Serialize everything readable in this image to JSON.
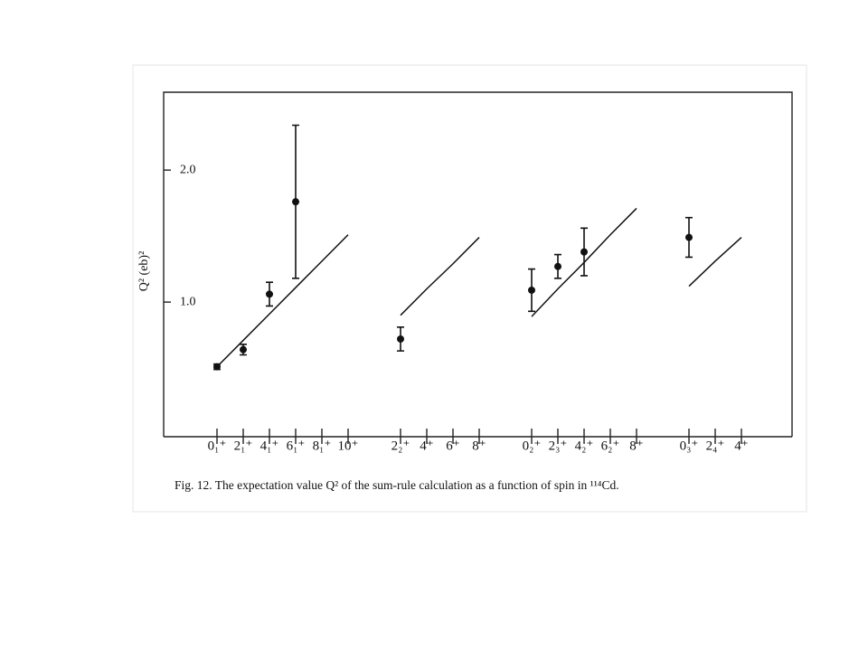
{
  "chart_data": {
    "type": "errorbar",
    "ylabel": "Q² (eb)²",
    "caption": "Fig. 12. The expectation value Q² of the sum-rule calculation as a function of spin in ¹¹⁴Cd.",
    "categories": [
      "0₁⁺",
      "2₁⁺",
      "4₁⁺",
      "6₁⁺",
      "8₁⁺",
      "10⁺",
      null,
      "2₂⁺",
      "4⁺",
      "6⁺",
      "8⁺",
      null,
      "0₂⁺",
      "2₃⁺",
      "4₂⁺",
      "6₂⁺",
      "8⁺",
      null,
      "0₃⁺",
      "2₄⁺",
      "4⁺"
    ],
    "series": [
      {
        "mark": "errorbar",
        "color": "#111111",
        "values": [
          0.51,
          0.64,
          1.06,
          1.76,
          null,
          null,
          null,
          0.72,
          null,
          null,
          null,
          null,
          1.09,
          1.27,
          1.38,
          null,
          null,
          null,
          1.49,
          null,
          null
        ],
        "errors": [
          0.02,
          0.04,
          0.09,
          0.58,
          null,
          null,
          null,
          0.09,
          null,
          null,
          null,
          null,
          0.16,
          0.09,
          0.18,
          null,
          null,
          null,
          0.15,
          null,
          null
        ]
      },
      {
        "mark": "line",
        "color": "#111111",
        "values": [
          0.51,
          0.71,
          0.91,
          1.11,
          1.31,
          1.51,
          null,
          0.9,
          1.1,
          1.29,
          1.49,
          null,
          0.89,
          1.1,
          1.3,
          1.51,
          1.71,
          null,
          1.12,
          1.31,
          1.49
        ]
      }
    ],
    "ylim": [
      -0.02,
      2.59
    ],
    "yticks": [
      {
        "value": 1,
        "label": "1.0"
      },
      {
        "value": 2,
        "label": "2.0"
      }
    ]
  }
}
